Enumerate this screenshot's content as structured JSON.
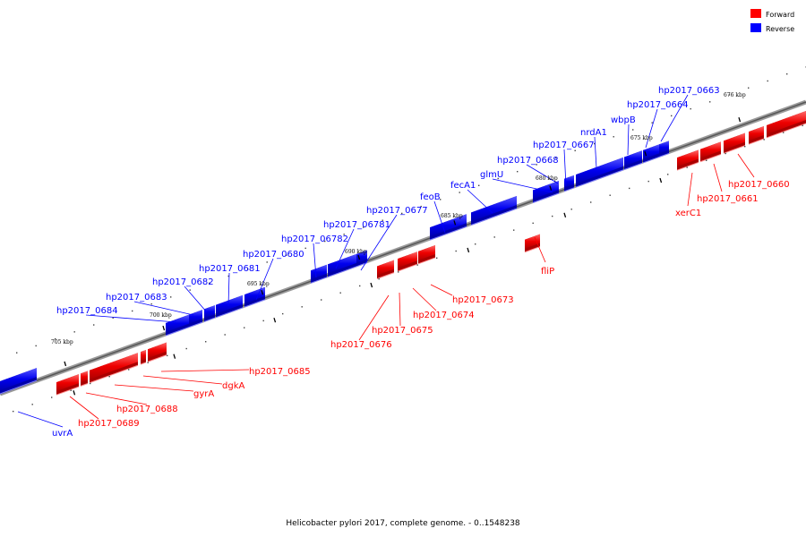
{
  "caption": "Helicobacter pylori 2017, complete genome. - 0..1548238",
  "legend": {
    "forward": {
      "label": "Forward",
      "color": "#ff0000"
    },
    "reverse": {
      "label": "Reverse",
      "color": "#0000ff"
    }
  },
  "scale": {
    "ticks": [
      "676 kbp",
      "675 kbp",
      "680 kbp",
      "685 kbp",
      "690 kbp",
      "695 kbp",
      "700 kbp",
      "705 kbp"
    ]
  },
  "genes": {
    "forward": [
      "xerC1",
      "hp2017_0661",
      "hp2017_0660",
      "fliP",
      "hp2017_0673",
      "hp2017_0674",
      "hp2017_0675",
      "hp2017_0676",
      "hp2017_0685",
      "dgkA",
      "gyrA",
      "hp2017_0688",
      "hp2017_0689"
    ],
    "reverse": [
      "hp2017_0663",
      "hp2017_0664",
      "wbpB",
      "nrdA1",
      "hp2017_0667",
      "hp2017_0668",
      "glmU",
      "fecA1",
      "feoB",
      "hp2017_0677",
      "hp2017_06781",
      "hp2017_06782",
      "hp2017_0680",
      "hp2017_0681",
      "hp2017_0682",
      "hp2017_0683",
      "hp2017_0684",
      "uvrA"
    ]
  }
}
